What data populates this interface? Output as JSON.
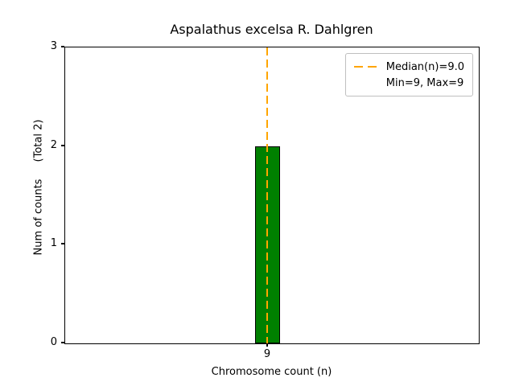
{
  "figure": {
    "background": "#ffffff"
  },
  "chart_data": {
    "type": "bar",
    "title": "Aspalathus excelsa R. Dahlgren",
    "xlabel": "Chromosome count (n)",
    "ylabel": "Num of counts",
    "ylabel_note": "(Total 2)",
    "categories": [
      "9"
    ],
    "values": [
      2
    ],
    "total_counts": 2,
    "ylim": [
      0,
      3
    ],
    "yticks": [
      "0",
      "1",
      "2",
      "3"
    ],
    "xticks": [
      "9"
    ],
    "grid": false,
    "bar_style": {
      "fill_color": "#008000",
      "edge_color": "#000000"
    },
    "median_line": {
      "value": 9.0,
      "color": "#FFA500",
      "style": "dashed"
    },
    "legend": {
      "position": "upper right",
      "entries": [
        {
          "label": "Median(n)=9.0",
          "handle": "orange-dashed-line"
        },
        {
          "label": "Min=9, Max=9",
          "handle": "none"
        }
      ]
    }
  }
}
